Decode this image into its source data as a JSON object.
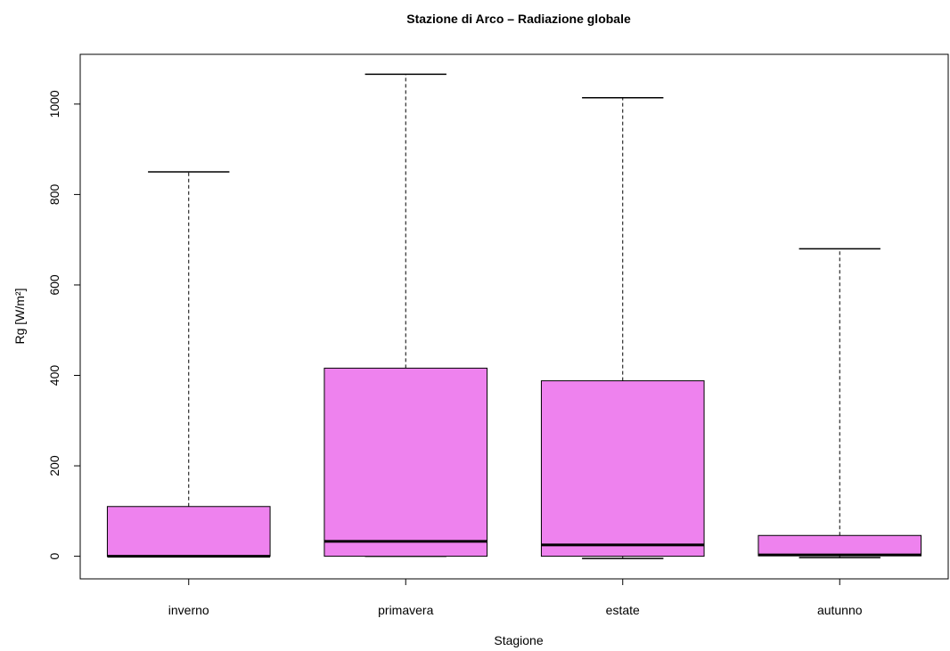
{
  "chart_data": {
    "type": "boxplot",
    "title": "Stazione di Arco – Radiazione globale",
    "xlabel": "Stagione",
    "ylabel": "Rg [W/m²]",
    "ylim": [
      -50,
      1110
    ],
    "yticks": [
      0,
      200,
      400,
      600,
      800,
      1000
    ],
    "grid": false,
    "box_color": "#EE82EE",
    "categories": [
      "inverno",
      "primavera",
      "estate",
      "autunno"
    ],
    "boxes": [
      {
        "category": "inverno",
        "whisker_low": 0,
        "q1": 0,
        "median": 0,
        "q3": 110,
        "whisker_high": 850
      },
      {
        "category": "primavera",
        "whisker_low": 0,
        "q1": 0,
        "median": 33,
        "q3": 416,
        "whisker_high": 1066
      },
      {
        "category": "estate",
        "whisker_low": -5,
        "q1": 0,
        "median": 25,
        "q3": 388,
        "whisker_high": 1014
      },
      {
        "category": "autunno",
        "whisker_low": -3,
        "q1": 1,
        "median": 3,
        "q3": 46,
        "whisker_high": 680
      }
    ]
  }
}
